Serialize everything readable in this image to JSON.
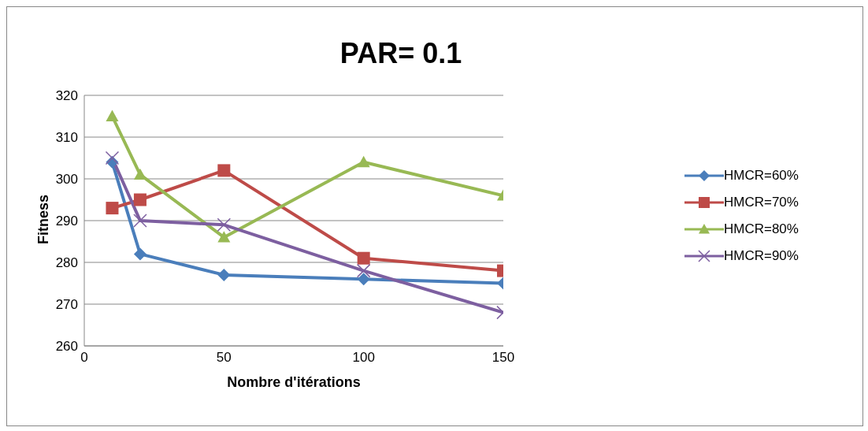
{
  "chart_data": {
    "type": "line",
    "title": "PAR= 0.1",
    "xlabel": "Nombre d'itérations",
    "ylabel": "Fitness",
    "x": [
      10,
      20,
      50,
      100,
      150
    ],
    "series": [
      {
        "name": "HMCR=60%",
        "color": "#4a7ebb",
        "marker": "diamond",
        "values": [
          304,
          282,
          277,
          276,
          275
        ]
      },
      {
        "name": "HMCR=70%",
        "color": "#be4b48",
        "marker": "square",
        "values": [
          293,
          295,
          302,
          281,
          278
        ]
      },
      {
        "name": "HMCR=80%",
        "color": "#98b954",
        "marker": "triangle",
        "values": [
          315,
          301,
          286,
          304,
          296
        ]
      },
      {
        "name": "HMCR=90%",
        "color": "#7d5fa0",
        "marker": "cross",
        "values": [
          305,
          290,
          289,
          278,
          268
        ]
      }
    ],
    "xlim": [
      0,
      150
    ],
    "xticks": [
      0,
      50,
      100,
      150
    ],
    "ylim": [
      260,
      320
    ],
    "yticks": [
      260,
      270,
      280,
      290,
      300,
      310,
      320
    ],
    "grid": "y",
    "legend": "right",
    "line_style": "solid"
  }
}
